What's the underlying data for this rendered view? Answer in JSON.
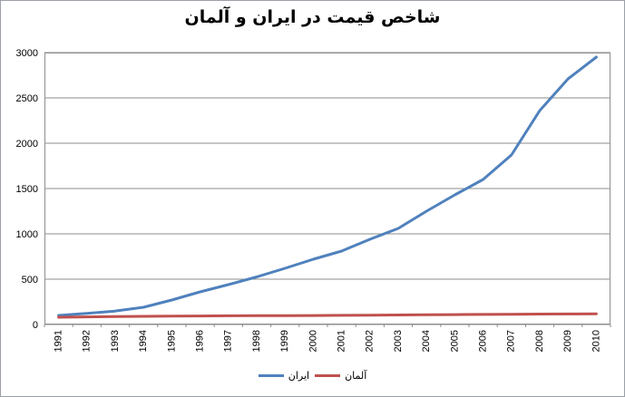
{
  "chart_data": {
    "type": "line",
    "title": "شاخص قیمت در ایران و آلمان",
    "categories": [
      "1991",
      "1992",
      "1993",
      "1994",
      "1995",
      "1996",
      "1997",
      "1998",
      "1999",
      "2000",
      "2001",
      "2002",
      "2003",
      "2004",
      "2005",
      "2006",
      "2007",
      "2008",
      "2009",
      "2010"
    ],
    "series": [
      {
        "name": "ایران",
        "color": "#4F81BD",
        "values": [
          100,
          122,
          148,
          190,
          270,
          360,
          440,
          525,
          620,
          720,
          810,
          940,
          1060,
          1250,
          1430,
          1600,
          1870,
          2360,
          2710,
          2950
        ]
      },
      {
        "name": "آلمان",
        "color": "#C0504D",
        "values": [
          80,
          84,
          87,
          90,
          92,
          94,
          96,
          97,
          98,
          99,
          101,
          103,
          105,
          107,
          109,
          111,
          113,
          115,
          116,
          118
        ]
      }
    ],
    "xlabel": "",
    "ylabel": "",
    "ylim": [
      0,
      3000
    ],
    "yticks": [
      0,
      500,
      1000,
      1500,
      2000,
      2500,
      3000
    ],
    "grid": true,
    "legend_position": "bottom",
    "x_label_rotation": -90
  },
  "colors": {
    "gridline": "#8E8E8E",
    "plot_border": "#8E8E8E",
    "background": "#FFFFFF",
    "text": "#000000",
    "iran_line": "#4F81BD",
    "germany_line": "#C0504D"
  }
}
